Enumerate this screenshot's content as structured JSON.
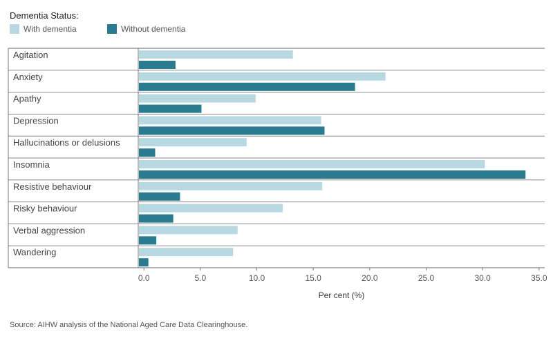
{
  "legend": {
    "title": "Dementia Status:",
    "items": [
      {
        "label": "With dementia",
        "color": "#b9d9e2"
      },
      {
        "label": "Without dementia",
        "color": "#2a7b8f"
      }
    ]
  },
  "source": "Source: AIHW analysis of the National Aged Care Data Clearinghouse.",
  "chart_data": {
    "type": "bar",
    "orientation": "horizontal",
    "categories": [
      "Agitation",
      "Anxiety",
      "Apathy",
      "Depression",
      "Hallucinations or delusions",
      "Insomnia",
      "Resistive behaviour",
      "Risky behaviour",
      "Verbal aggression",
      "Wandering"
    ],
    "series": [
      {
        "name": "With dementia",
        "color": "#b9d9e2",
        "values": [
          13.2,
          21.4,
          9.9,
          15.7,
          9.1,
          30.2,
          15.8,
          12.3,
          8.3,
          7.9
        ]
      },
      {
        "name": "Without dementia",
        "color": "#2a7b8f",
        "values": [
          2.8,
          18.7,
          5.1,
          16.0,
          1.0,
          33.8,
          3.2,
          2.6,
          1.1,
          0.4
        ]
      }
    ],
    "xlabel": "Per cent (%)",
    "ylabel": "",
    "xlim": [
      -0.5,
      35.5
    ],
    "ticks": [
      "0.0",
      "5.0",
      "10.0",
      "15.0",
      "20.0",
      "25.0",
      "30.0",
      "35.0"
    ],
    "tick_values": [
      0,
      5,
      10,
      15,
      20,
      25,
      30,
      35
    ],
    "grid": false,
    "legend_position": "top-left"
  }
}
